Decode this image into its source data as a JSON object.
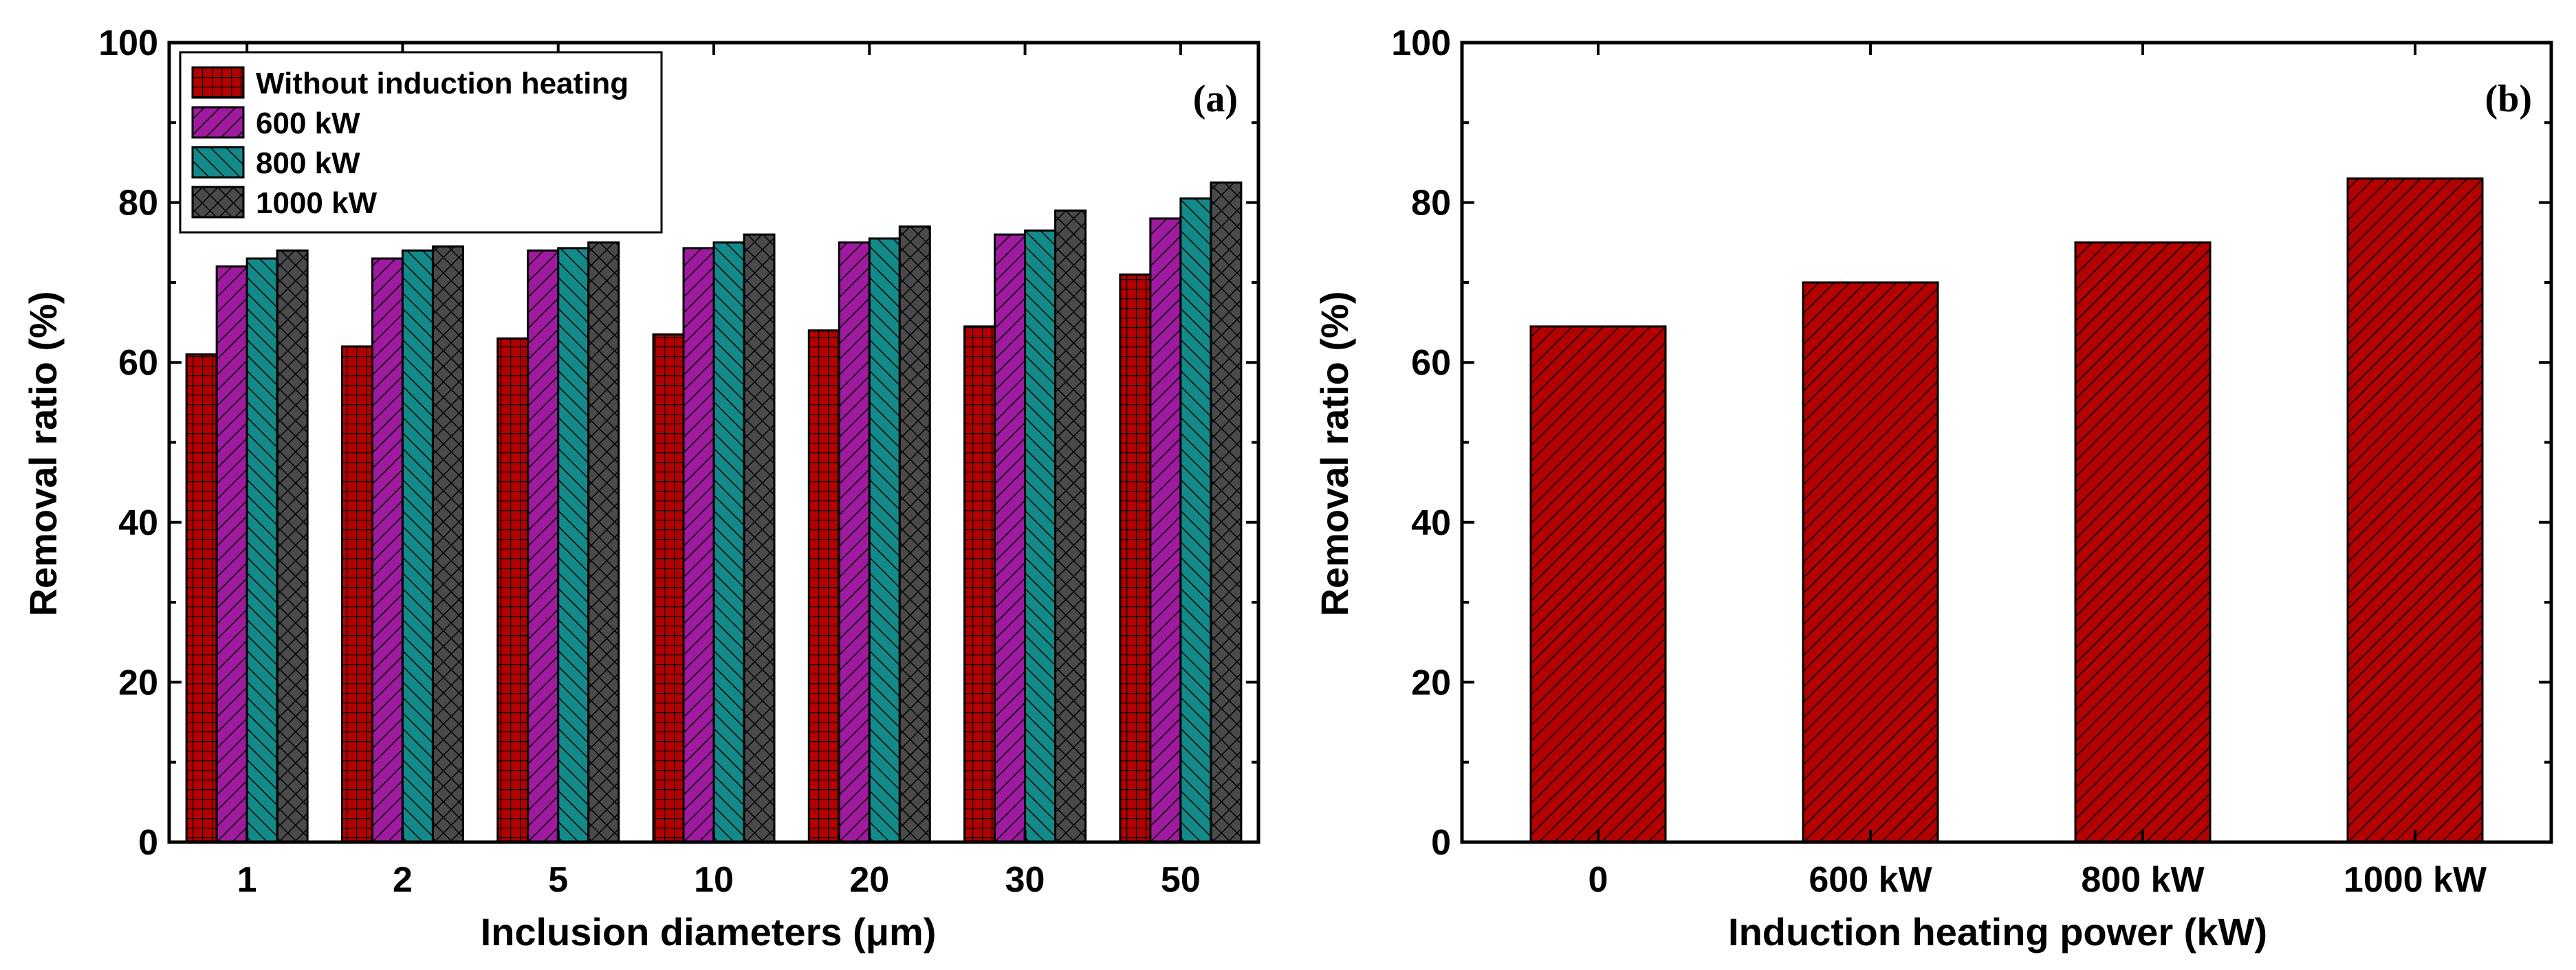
{
  "chart_data": [
    {
      "type": "bar",
      "panel_label": "(a)",
      "xlabel": "Inclusion diameters (μm)",
      "ylabel": "Removal ratio (%)",
      "ylim": [
        0,
        100
      ],
      "yticks": [
        "0",
        "20",
        "40",
        "60",
        "80",
        "100"
      ],
      "categories": [
        "1",
        "2",
        "5",
        "10",
        "20",
        "30",
        "50"
      ],
      "legend_position": "top-left",
      "series": [
        {
          "name": "Without induction heating",
          "color": "#b30000",
          "pattern": "grid",
          "values": [
            61,
            62,
            63,
            63.5,
            64,
            64.5,
            71
          ]
        },
        {
          "name": "600 kW",
          "color": "#a01aa0",
          "pattern": "hatch",
          "values": [
            72,
            73,
            74,
            74.3,
            75,
            76,
            78
          ]
        },
        {
          "name": "800 kW",
          "color": "#128a8a",
          "pattern": "hatch",
          "values": [
            73,
            74,
            74.3,
            75,
            75.5,
            76.5,
            80.5
          ]
        },
        {
          "name": "1000 kW",
          "color": "#4a4a4a",
          "pattern": "crosshatch",
          "values": [
            74,
            74.5,
            75,
            76,
            77,
            79,
            82.5
          ]
        }
      ]
    },
    {
      "type": "bar",
      "panel_label": "(b)",
      "xlabel": "Induction heating power (kW)",
      "ylabel": "Removal ratio (%)",
      "ylim": [
        0,
        100
      ],
      "yticks": [
        "0",
        "20",
        "40",
        "60",
        "80",
        "100"
      ],
      "categories": [
        "0",
        "600 kW",
        "800 kW",
        "1000 kW"
      ],
      "series": [
        {
          "color": "#b30000",
          "pattern": "hatch",
          "values": [
            64.5,
            70,
            75,
            83
          ]
        }
      ]
    }
  ]
}
